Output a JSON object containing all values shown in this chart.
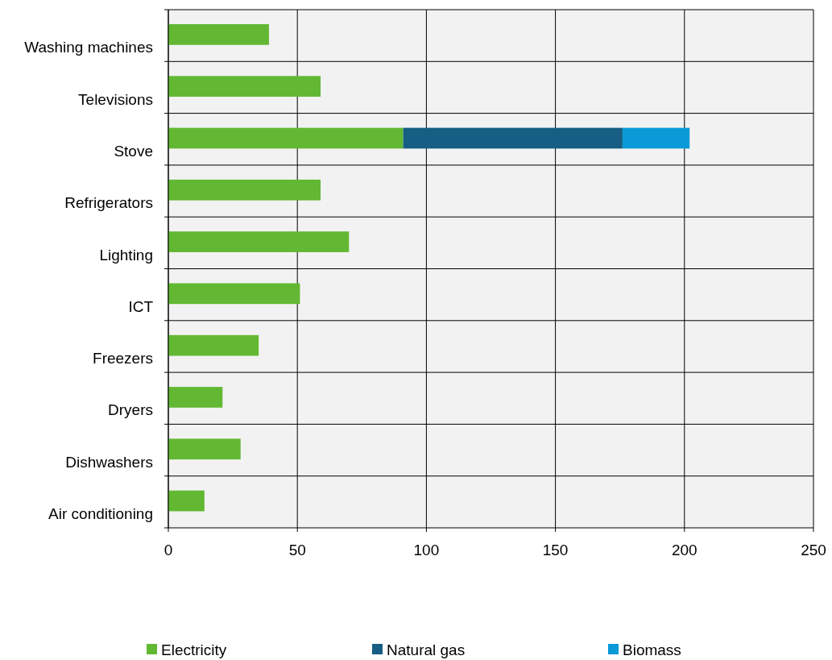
{
  "chart_data": {
    "type": "bar",
    "orientation": "horizontal",
    "stacked": true,
    "categories": [
      "Washing machines",
      "Televisions",
      "Stove",
      "Refrigerators",
      "Lighting",
      "ICT",
      "Freezers",
      "Dryers",
      "Dishwashers",
      "Air conditioning"
    ],
    "series": [
      {
        "name": "Electricity",
        "color": "#62b832",
        "values": [
          39,
          59,
          91,
          59,
          70,
          51,
          35,
          21,
          28,
          14
        ]
      },
      {
        "name": "Natural gas",
        "color": "#165e83",
        "values": [
          null,
          null,
          85,
          null,
          null,
          null,
          null,
          null,
          null,
          null
        ]
      },
      {
        "name": "Biomass",
        "color": "#0a9ad7",
        "values": [
          null,
          null,
          26,
          null,
          null,
          null,
          null,
          null,
          null,
          null
        ]
      }
    ],
    "xlim": [
      0,
      250
    ],
    "xticks": [
      0,
      50,
      100,
      150,
      200,
      250
    ],
    "grid": true,
    "legend": "bottom"
  }
}
